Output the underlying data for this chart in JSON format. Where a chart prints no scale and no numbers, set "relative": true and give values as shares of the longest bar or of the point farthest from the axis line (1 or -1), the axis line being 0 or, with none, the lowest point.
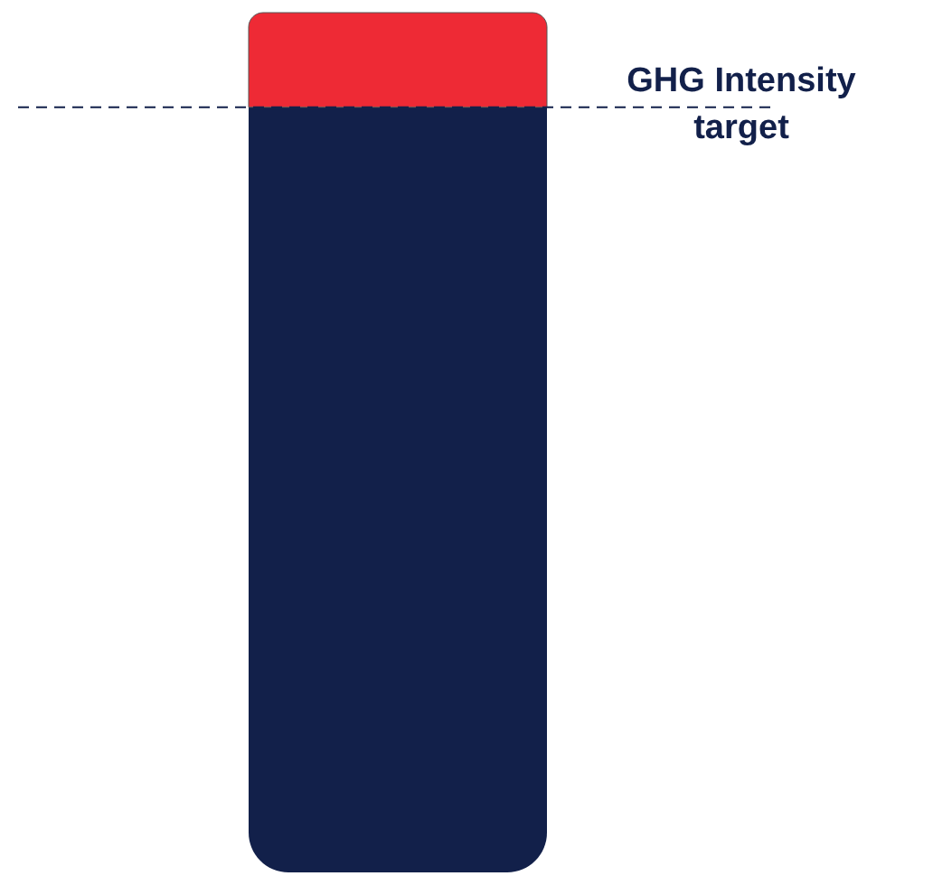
{
  "chart_data": {
    "type": "bar",
    "relative": true,
    "stacked": true,
    "categories": [
      null
    ],
    "series": [
      {
        "color": "#12204a",
        "values": [
          0.89
        ]
      },
      {
        "color": "#ee2a35",
        "values": [
          0.11
        ]
      }
    ],
    "ref_lines": [
      {
        "axis": "y",
        "value": 0.89,
        "label": "GHG Intensity target",
        "line_style": "dashed",
        "color": "#12204a"
      }
    ]
  }
}
